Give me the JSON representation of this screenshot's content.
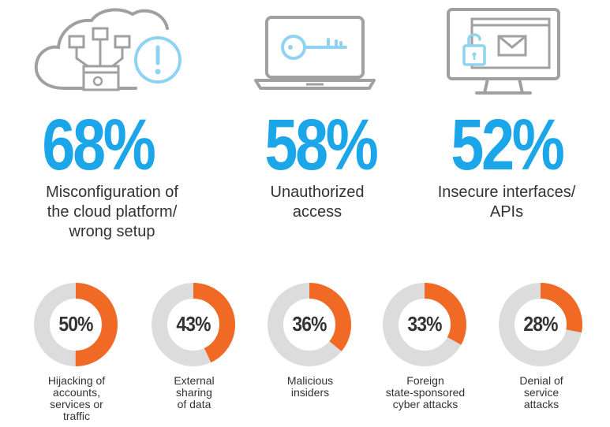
{
  "colors": {
    "accent_blue": "#1aa6e8",
    "accent_orange": "#f06a25",
    "track_gray": "#dcdcdc",
    "icon_gray": "#a0a0a0",
    "icon_light_blue": "#8fd3f0",
    "text_dark": "#333333"
  },
  "headline_stats": [
    {
      "value": "68%",
      "label": "Misconfiguration of\nthe cloud platform/\nwrong setup",
      "icon": "cloud-network-alert-icon"
    },
    {
      "value": "58%",
      "label": "Unauthorized\naccess",
      "icon": "laptop-key-icon"
    },
    {
      "value": "52%",
      "label": "Insecure interfaces/\nAPIs",
      "icon": "monitor-unlock-email-icon"
    }
  ],
  "chart_data": {
    "type": "pie",
    "subtype": "donut",
    "categories": [
      "Hijacking of accounts, services or traffic",
      "External sharing of data",
      "Malicious insiders",
      "Foreign state-sponsored cyber attacks",
      "Denial of service attacks"
    ],
    "values": [
      50,
      43,
      36,
      33,
      28
    ],
    "value_labels": [
      "50%",
      "43%",
      "36%",
      "33%",
      "28%"
    ],
    "labels_display": [
      "Hijacking of\naccounts,\nservices or\ntraffic",
      "External\nsharing\nof data",
      "Malicious\ninsiders",
      "Foreign\nstate-sponsored\ncyber attacks",
      "Denial of\nservice\nattacks"
    ],
    "max": 100,
    "title": "",
    "legend": "none"
  }
}
